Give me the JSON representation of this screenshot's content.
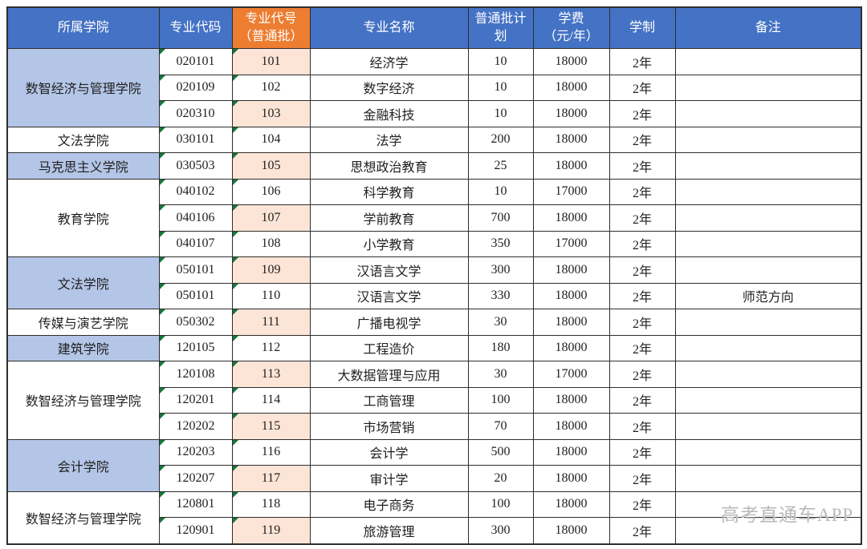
{
  "colors": {
    "header_blue": "#4472C4",
    "header_orange": "#ED7D31",
    "college_shaded_blue": "#B4C6E7",
    "code_shaded_peach": "#FCE4D6",
    "grid_border": "#2E2E2E",
    "green_triangle": "#17753A",
    "watermark_gray": "#B9B9B9"
  },
  "watermark": "高考直通车APP",
  "table": {
    "columns": [
      {
        "key": "college",
        "label": "所属学院"
      },
      {
        "key": "code",
        "label": "专业代码"
      },
      {
        "key": "num",
        "label": "专业代号\n（普通批）",
        "highlight": true
      },
      {
        "key": "name",
        "label": "专业名称"
      },
      {
        "key": "plan",
        "label": "普通批计\n划"
      },
      {
        "key": "fee",
        "label": "学费\n（元/年）"
      },
      {
        "key": "years",
        "label": "学制"
      },
      {
        "key": "note",
        "label": "备注"
      }
    ],
    "rows": [
      {
        "college": {
          "name": "数智经济与管理学院",
          "rowspan": 3,
          "shaded": true
        },
        "code": "020101",
        "num": "101",
        "name": "经济学",
        "plan": "10",
        "fee": "18000",
        "years": "2年",
        "note": ""
      },
      {
        "code": "020109",
        "num": "102",
        "name": "数字经济",
        "plan": "10",
        "fee": "18000",
        "years": "2年",
        "note": ""
      },
      {
        "code": "020310",
        "num": "103",
        "name": "金融科技",
        "plan": "10",
        "fee": "18000",
        "years": "2年",
        "note": ""
      },
      {
        "college": {
          "name": "文法学院",
          "rowspan": 1,
          "shaded": false
        },
        "code": "030101",
        "num": "104",
        "name": "法学",
        "plan": "200",
        "fee": "18000",
        "years": "2年",
        "note": ""
      },
      {
        "college": {
          "name": "马克思主义学院",
          "rowspan": 1,
          "shaded": true
        },
        "code": "030503",
        "num": "105",
        "name": "思想政治教育",
        "plan": "25",
        "fee": "18000",
        "years": "2年",
        "note": ""
      },
      {
        "college": {
          "name": "教育学院",
          "rowspan": 3,
          "shaded": false
        },
        "code": "040102",
        "num": "106",
        "name": "科学教育",
        "plan": "10",
        "fee": "17000",
        "years": "2年",
        "note": ""
      },
      {
        "code": "040106",
        "num": "107",
        "name": "学前教育",
        "plan": "700",
        "fee": "18000",
        "years": "2年",
        "note": ""
      },
      {
        "code": "040107",
        "num": "108",
        "name": "小学教育",
        "plan": "350",
        "fee": "17000",
        "years": "2年",
        "note": ""
      },
      {
        "college": {
          "name": "文法学院",
          "rowspan": 2,
          "shaded": true
        },
        "code": "050101",
        "num": "109",
        "name": "汉语言文学",
        "plan": "300",
        "fee": "18000",
        "years": "2年",
        "note": ""
      },
      {
        "code": "050101",
        "num": "110",
        "name": "汉语言文学",
        "plan": "330",
        "fee": "18000",
        "years": "2年",
        "note": "师范方向"
      },
      {
        "college": {
          "name": "传媒与演艺学院",
          "rowspan": 1,
          "shaded": false
        },
        "code": "050302",
        "num": "111",
        "name": "广播电视学",
        "plan": "30",
        "fee": "18000",
        "years": "2年",
        "note": ""
      },
      {
        "college": {
          "name": "建筑学院",
          "rowspan": 1,
          "shaded": true
        },
        "code": "120105",
        "num": "112",
        "name": "工程造价",
        "plan": "180",
        "fee": "18000",
        "years": "2年",
        "note": ""
      },
      {
        "college": {
          "name": "数智经济与管理学院",
          "rowspan": 3,
          "shaded": false
        },
        "code": "120108",
        "num": "113",
        "name": "大数据管理与应用",
        "plan": "30",
        "fee": "17000",
        "years": "2年",
        "note": ""
      },
      {
        "code": "120201",
        "num": "114",
        "name": "工商管理",
        "plan": "100",
        "fee": "18000",
        "years": "2年",
        "note": ""
      },
      {
        "code": "120202",
        "num": "115",
        "name": "市场营销",
        "plan": "70",
        "fee": "18000",
        "years": "2年",
        "note": ""
      },
      {
        "college": {
          "name": "会计学院",
          "rowspan": 2,
          "shaded": true
        },
        "code": "120203",
        "num": "116",
        "name": "会计学",
        "plan": "500",
        "fee": "18000",
        "years": "2年",
        "note": ""
      },
      {
        "code": "120207",
        "num": "117",
        "name": "审计学",
        "plan": "20",
        "fee": "18000",
        "years": "2年",
        "note": ""
      },
      {
        "college": {
          "name": "数智经济与管理学院",
          "rowspan": 2,
          "shaded": false
        },
        "code": "120801",
        "num": "118",
        "name": "电子商务",
        "plan": "100",
        "fee": "18000",
        "years": "2年",
        "note": ""
      },
      {
        "code": "120901",
        "num": "119",
        "name": "旅游管理",
        "plan": "300",
        "fee": "18000",
        "years": "2年",
        "note": ""
      }
    ]
  }
}
